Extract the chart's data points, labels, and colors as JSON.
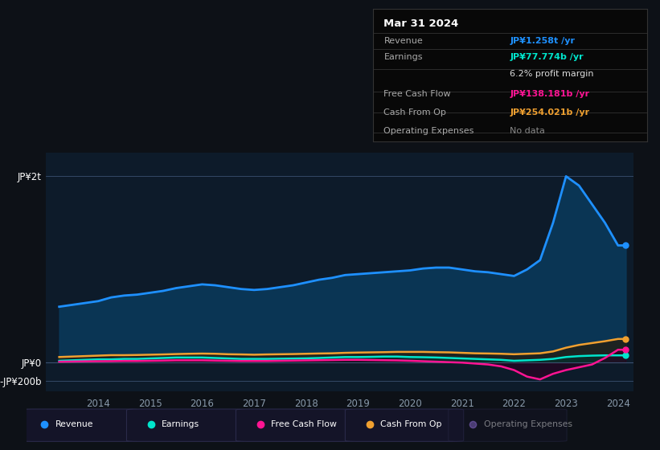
{
  "bg_color": "#0d1117",
  "plot_bg_color": "#0d1b2a",
  "years": [
    2013.25,
    2013.5,
    2013.75,
    2014.0,
    2014.25,
    2014.5,
    2014.75,
    2015.0,
    2015.25,
    2015.5,
    2015.75,
    2016.0,
    2016.25,
    2016.5,
    2016.75,
    2017.0,
    2017.25,
    2017.5,
    2017.75,
    2018.0,
    2018.25,
    2018.5,
    2018.75,
    2019.0,
    2019.25,
    2019.5,
    2019.75,
    2020.0,
    2020.25,
    2020.5,
    2020.75,
    2021.0,
    2021.25,
    2021.5,
    2021.75,
    2022.0,
    2022.25,
    2022.5,
    2022.75,
    2023.0,
    2023.25,
    2023.5,
    2023.75,
    2024.0,
    2024.15
  ],
  "revenue": [
    600,
    620,
    640,
    660,
    700,
    720,
    730,
    750,
    770,
    800,
    820,
    840,
    830,
    810,
    790,
    780,
    790,
    810,
    830,
    860,
    890,
    910,
    940,
    950,
    960,
    970,
    980,
    990,
    1010,
    1020,
    1020,
    1000,
    980,
    970,
    950,
    930,
    1000,
    1100,
    1500,
    2000,
    1900,
    1700,
    1500,
    1258,
    1258
  ],
  "earnings": [
    20,
    25,
    30,
    35,
    35,
    40,
    40,
    45,
    50,
    55,
    55,
    55,
    50,
    45,
    40,
    40,
    40,
    42,
    44,
    46,
    50,
    55,
    60,
    60,
    62,
    65,
    65,
    60,
    58,
    55,
    50,
    45,
    40,
    35,
    30,
    20,
    25,
    30,
    40,
    60,
    70,
    75,
    78,
    77.774,
    77.774
  ],
  "free_cash_flow": [
    10,
    12,
    14,
    15,
    16,
    18,
    18,
    20,
    22,
    25,
    25,
    25,
    22,
    20,
    18,
    18,
    18,
    20,
    22,
    24,
    26,
    28,
    30,
    30,
    28,
    26,
    24,
    20,
    15,
    10,
    5,
    0,
    -10,
    -20,
    -40,
    -80,
    -150,
    -180,
    -120,
    -80,
    -50,
    -20,
    50,
    138.181,
    138.181
  ],
  "cash_from_op": [
    60,
    65,
    70,
    75,
    80,
    80,
    82,
    85,
    88,
    92,
    95,
    97,
    95,
    90,
    88,
    85,
    88,
    90,
    92,
    95,
    98,
    100,
    105,
    108,
    110,
    112,
    115,
    115,
    115,
    112,
    110,
    105,
    100,
    98,
    95,
    90,
    95,
    100,
    120,
    160,
    190,
    210,
    230,
    254.021,
    254.021
  ],
  "revenue_color": "#1e90ff",
  "earnings_color": "#00e5cc",
  "fcf_color": "#ff1493",
  "cashop_color": "#f0a030",
  "opex_color": "#9370db",
  "revenue_fill_color": "#0a3a5c",
  "ylim_min": -310,
  "ylim_max": 2250,
  "xlim_min": 2013.0,
  "xlim_max": 2024.3,
  "xticks": [
    2014,
    2015,
    2016,
    2017,
    2018,
    2019,
    2020,
    2021,
    2022,
    2023,
    2024
  ],
  "legend_items": [
    {
      "label": "Revenue",
      "color": "#1e90ff",
      "dim": false
    },
    {
      "label": "Earnings",
      "color": "#00e5cc",
      "dim": false
    },
    {
      "label": "Free Cash Flow",
      "color": "#ff1493",
      "dim": false
    },
    {
      "label": "Cash From Op",
      "color": "#f0a030",
      "dim": false
    },
    {
      "label": "Operating Expenses",
      "color": "#9370db",
      "dim": true
    }
  ],
  "info_rows": [
    {
      "label": "Revenue",
      "value": "JP¥1.258t /yr",
      "value_color": "#1e90ff"
    },
    {
      "label": "Earnings",
      "value": "JP¥77.774b /yr",
      "value_color": "#00e5cc"
    },
    {
      "label": "",
      "value": "6.2% profit margin",
      "value_color": "#dddddd"
    },
    {
      "label": "Free Cash Flow",
      "value": "JP¥138.181b /yr",
      "value_color": "#ff1493"
    },
    {
      "label": "Cash From Op",
      "value": "JP¥254.021b /yr",
      "value_color": "#f0a030"
    },
    {
      "label": "Operating Expenses",
      "value": "No data",
      "value_color": "#888888"
    }
  ]
}
